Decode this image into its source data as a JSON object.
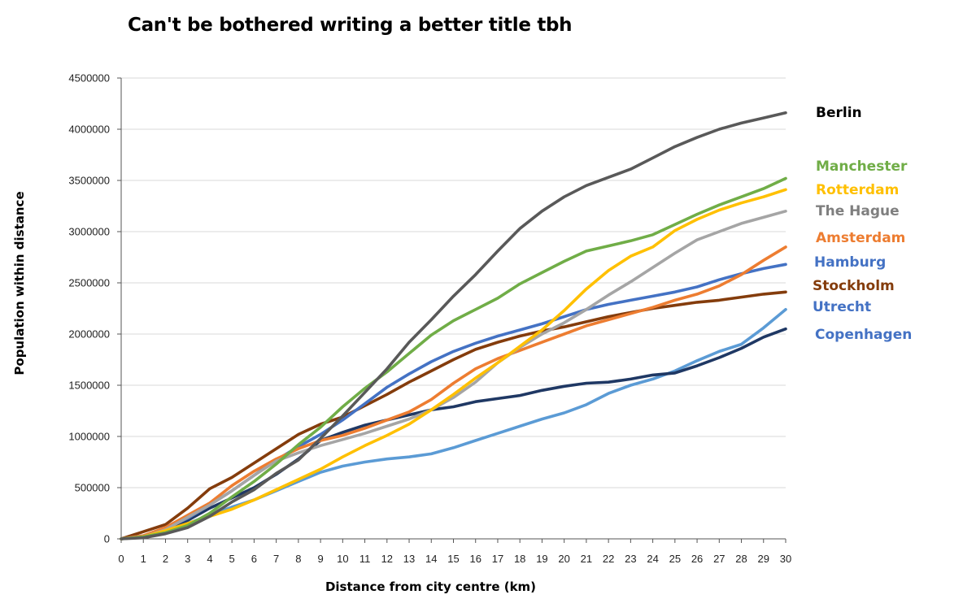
{
  "chart_data": {
    "type": "line",
    "title": "Can't be bothered writing a better title tbh",
    "xlabel": "Distance from city centre (km)",
    "ylabel": "Population within distance",
    "x": [
      0,
      1,
      2,
      3,
      4,
      5,
      6,
      7,
      8,
      9,
      10,
      11,
      12,
      13,
      14,
      15,
      16,
      17,
      18,
      19,
      20,
      21,
      22,
      23,
      24,
      25,
      26,
      27,
      28,
      29,
      30
    ],
    "xlim": [
      0,
      30
    ],
    "ylim": [
      0,
      4500000
    ],
    "yticks": [
      0,
      500000,
      1000000,
      1500000,
      2000000,
      2500000,
      3000000,
      3500000,
      4000000,
      4500000
    ],
    "grid": "horizontal",
    "legend": "right, labels at line ends",
    "series": [
      {
        "name": "Copenhagen",
        "color": "#5B9BD5",
        "values": [
          0,
          20000,
          60000,
          150000,
          230000,
          310000,
          380000,
          470000,
          560000,
          650000,
          710000,
          750000,
          780000,
          800000,
          830000,
          890000,
          960000,
          1030000,
          1100000,
          1170000,
          1230000,
          1310000,
          1420000,
          1500000,
          1560000,
          1640000,
          1740000,
          1830000,
          1900000,
          2060000,
          2240000
        ]
      },
      {
        "name": "Utrecht",
        "color": "#1F3864",
        "values": [
          0,
          20000,
          80000,
          180000,
          300000,
          400000,
          500000,
          630000,
          780000,
          960000,
          1040000,
          1110000,
          1160000,
          1210000,
          1260000,
          1290000,
          1340000,
          1370000,
          1400000,
          1450000,
          1490000,
          1520000,
          1530000,
          1560000,
          1600000,
          1620000,
          1690000,
          1770000,
          1860000,
          1970000,
          2050000
        ]
      },
      {
        "name": "Stockholm",
        "color": "#843C0C",
        "values": [
          0,
          70000,
          140000,
          300000,
          490000,
          600000,
          740000,
          880000,
          1020000,
          1120000,
          1190000,
          1300000,
          1410000,
          1530000,
          1640000,
          1750000,
          1850000,
          1920000,
          1980000,
          2030000,
          2070000,
          2120000,
          2170000,
          2210000,
          2250000,
          2280000,
          2310000,
          2330000,
          2360000,
          2390000,
          2410000
        ]
      },
      {
        "name": "Hamburg",
        "color": "#4472C4",
        "values": [
          0,
          30000,
          100000,
          200000,
          330000,
          470000,
          620000,
          770000,
          900000,
          1020000,
          1160000,
          1320000,
          1480000,
          1610000,
          1730000,
          1830000,
          1910000,
          1980000,
          2040000,
          2100000,
          2170000,
          2240000,
          2290000,
          2330000,
          2370000,
          2410000,
          2460000,
          2530000,
          2590000,
          2640000,
          2680000
        ]
      },
      {
        "name": "Amsterdam",
        "color": "#ED7D31",
        "values": [
          0,
          30000,
          110000,
          230000,
          350000,
          520000,
          660000,
          780000,
          880000,
          960000,
          1010000,
          1080000,
          1160000,
          1240000,
          1360000,
          1520000,
          1660000,
          1760000,
          1840000,
          1920000,
          2000000,
          2080000,
          2140000,
          2200000,
          2260000,
          2330000,
          2390000,
          2470000,
          2580000,
          2720000,
          2850000
        ]
      },
      {
        "name": "The Hague",
        "color": "#A5A5A5",
        "values": [
          0,
          20000,
          90000,
          210000,
          330000,
          470000,
          620000,
          760000,
          840000,
          910000,
          970000,
          1030000,
          1100000,
          1170000,
          1260000,
          1380000,
          1530000,
          1720000,
          1870000,
          2000000,
          2110000,
          2240000,
          2380000,
          2510000,
          2650000,
          2790000,
          2920000,
          3000000,
          3080000,
          3140000,
          3200000
        ]
      },
      {
        "name": "Rotterdam",
        "color": "#FFC000",
        "values": [
          0,
          20000,
          80000,
          150000,
          220000,
          290000,
          380000,
          480000,
          580000,
          680000,
          800000,
          910000,
          1010000,
          1120000,
          1260000,
          1410000,
          1570000,
          1720000,
          1880000,
          2040000,
          2230000,
          2440000,
          2620000,
          2760000,
          2850000,
          3010000,
          3120000,
          3210000,
          3280000,
          3340000,
          3410000
        ]
      },
      {
        "name": "Manchester",
        "color": "#70AD47",
        "values": [
          0,
          20000,
          60000,
          130000,
          250000,
          410000,
          560000,
          730000,
          920000,
          1090000,
          1290000,
          1470000,
          1630000,
          1810000,
          1990000,
          2130000,
          2240000,
          2350000,
          2490000,
          2600000,
          2710000,
          2810000,
          2860000,
          2910000,
          2970000,
          3070000,
          3170000,
          3260000,
          3340000,
          3420000,
          3520000
        ]
      },
      {
        "name": "Berlin",
        "color": "#595959",
        "values": [
          0,
          10000,
          50000,
          110000,
          220000,
          360000,
          480000,
          640000,
          770000,
          980000,
          1200000,
          1430000,
          1660000,
          1920000,
          2140000,
          2370000,
          2580000,
          2810000,
          3030000,
          3200000,
          3340000,
          3450000,
          3530000,
          3610000,
          3720000,
          3830000,
          3920000,
          4000000,
          4060000,
          4110000,
          4160000
        ]
      }
    ],
    "legend_labels": [
      {
        "text": "Berlin",
        "color": "#000000"
      },
      {
        "text": "Manchester",
        "color": "#70AD47"
      },
      {
        "text": "Rotterdam",
        "color": "#FFC000"
      },
      {
        "text": "The Hague",
        "color": "#7F7F7F"
      },
      {
        "text": "Amsterdam",
        "color": "#ED7D31"
      },
      {
        "text": "Hamburg",
        "color": "#4472C4"
      },
      {
        "text": "Stockholm",
        "color": "#843C0C"
      },
      {
        "text": "Utrecht",
        "color": "#4472C4"
      },
      {
        "text": "Copenhagen",
        "color": "#4472C4"
      }
    ]
  }
}
